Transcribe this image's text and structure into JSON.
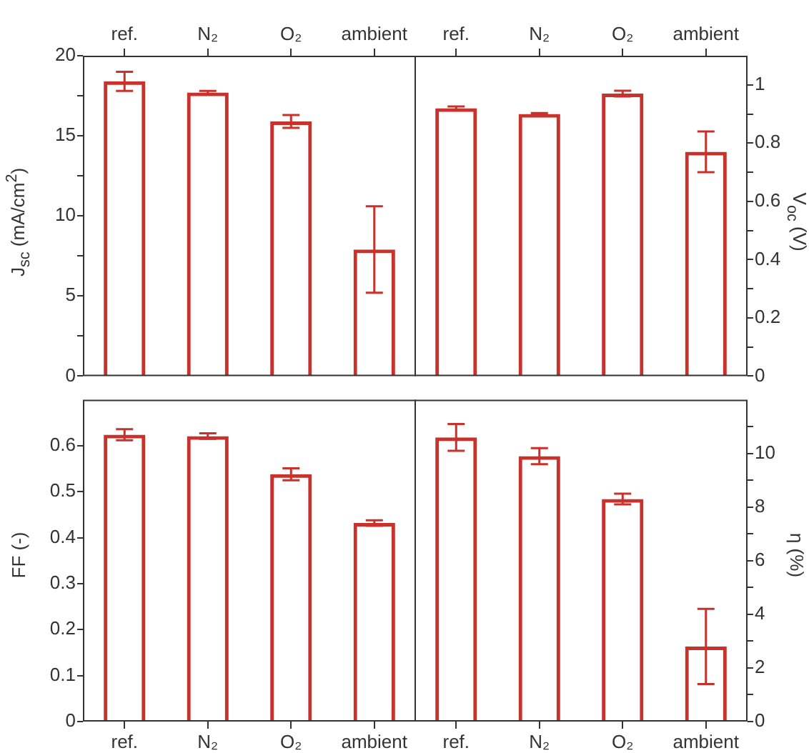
{
  "chart_data": [
    {
      "type": "bar",
      "categories": [
        "ref.",
        "N₂",
        "O₂",
        "ambient"
      ],
      "ylabel": "J$_{sc}$ (mA/cm$^{2}$)",
      "ylim": [
        0,
        20
      ],
      "yticks": [
        0,
        {
          "value": 2.5,
          "label": null
        },
        5,
        {
          "value": 7.5,
          "label": null
        },
        10,
        {
          "value": 12.5,
          "label": null
        },
        15,
        {
          "value": 17.5,
          "label": null
        },
        20
      ],
      "series": [
        {
          "color": "#c8322d",
          "values": [
            18.4,
            17.7,
            15.9,
            7.9
          ],
          "errors": [
            0.6,
            0.1,
            0.4,
            2.7
          ]
        }
      ]
    },
    {
      "type": "bar",
      "categories": [
        "ref.",
        "N₂",
        "O₂",
        "ambient"
      ],
      "y2label": "V$_{oc}$ (V)",
      "y2lim": [
        0,
        1.1
      ],
      "y2ticks": [
        0,
        {
          "value": 0.1,
          "label": null
        },
        0.2,
        {
          "value": 0.3,
          "label": null
        },
        0.4,
        {
          "value": 0.5,
          "label": null
        },
        0.6,
        {
          "value": 0.7,
          "label": null
        },
        0.8,
        {
          "value": 0.9,
          "label": null
        },
        1
      ],
      "series": [
        {
          "color": "#c8322d",
          "axis": "y2",
          "values": [
            0.92,
            0.9,
            0.97,
            0.77
          ],
          "errors": [
            0.006,
            0.003,
            0.01,
            0.07
          ]
        }
      ]
    },
    {
      "type": "bar",
      "categories": [
        "ref.",
        "N₂",
        "O₂",
        "ambient"
      ],
      "ylabel": "FF (-)",
      "ylim": [
        0,
        0.7
      ],
      "yticks": [
        0,
        0.1,
        0.2,
        0.3,
        0.4,
        0.5,
        0.6
      ],
      "series": [
        {
          "color": "#c8322d",
          "values": [
            0.624,
            0.621,
            0.538,
            0.432
          ],
          "errors": [
            0.012,
            0.006,
            0.013,
            0.006
          ]
        }
      ]
    },
    {
      "type": "bar",
      "categories": [
        "ref.",
        "N₂",
        "O₂",
        "ambient"
      ],
      "y2label": "η (%)",
      "y2lim": [
        0,
        12
      ],
      "y2ticks": [
        0,
        {
          "value": 1,
          "label": null
        },
        2,
        {
          "value": 3,
          "label": null
        },
        4,
        {
          "value": 5,
          "label": null
        },
        6,
        {
          "value": 7,
          "label": null
        },
        8,
        {
          "value": 9,
          "label": null
        },
        10,
        {
          "value": 11,
          "label": null
        }
      ],
      "series": [
        {
          "color": "#c8322d",
          "axis": "y2",
          "values": [
            10.6,
            9.9,
            8.3,
            2.8
          ],
          "errors": [
            0.5,
            0.3,
            0.2,
            1.4
          ]
        }
      ]
    }
  ]
}
